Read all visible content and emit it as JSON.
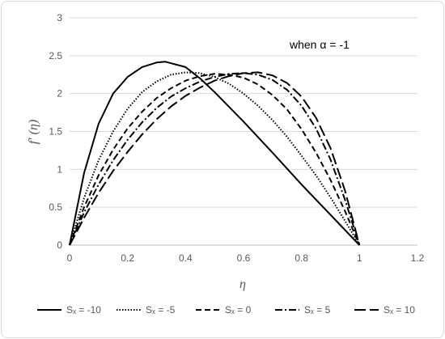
{
  "chart_data": {
    "type": "line",
    "title": "",
    "annotation": "when α = -1",
    "xlabel": "η",
    "ylabel": "f′ (η)",
    "xlim": [
      0,
      1.2
    ],
    "ylim": [
      0,
      3
    ],
    "xticks": [
      "0",
      "0.2",
      "0.4",
      "0.6",
      "0.8",
      "1",
      "1.2"
    ],
    "yticks": [
      "0",
      "0.5",
      "1",
      "1.5",
      "2",
      "2.5",
      "3"
    ],
    "grid": "horizontal",
    "legend_position": "bottom",
    "series": [
      {
        "name": "Sₓ = -10",
        "style": "solid",
        "x": [
          0,
          0.05,
          0.1,
          0.15,
          0.2,
          0.25,
          0.3,
          0.33,
          0.4,
          0.45,
          0.5,
          0.6,
          0.7,
          0.8,
          0.9,
          1.0
        ],
        "y": [
          0,
          0.95,
          1.6,
          2.0,
          2.22,
          2.35,
          2.41,
          2.42,
          2.35,
          2.2,
          2.02,
          1.63,
          1.22,
          0.8,
          0.4,
          0
        ]
      },
      {
        "name": "Sₓ = -5",
        "style": "dotted",
        "x": [
          0,
          0.05,
          0.1,
          0.15,
          0.2,
          0.25,
          0.3,
          0.35,
          0.4,
          0.45,
          0.5,
          0.55,
          0.6,
          0.65,
          0.7,
          0.75,
          0.8,
          0.85,
          0.9,
          0.95,
          1.0
        ],
        "y": [
          0,
          0.62,
          1.12,
          1.5,
          1.8,
          2.02,
          2.16,
          2.25,
          2.28,
          2.27,
          2.22,
          2.13,
          2.0,
          1.84,
          1.65,
          1.43,
          1.18,
          0.92,
          0.63,
          0.32,
          0
        ]
      },
      {
        "name": "Sₓ = 0",
        "style": "dashed",
        "x": [
          0,
          0.05,
          0.1,
          0.15,
          0.2,
          0.25,
          0.3,
          0.35,
          0.4,
          0.45,
          0.5,
          0.55,
          0.6,
          0.65,
          0.7,
          0.75,
          0.8,
          0.85,
          0.9,
          0.95,
          1.0
        ],
        "y": [
          0,
          0.5,
          0.92,
          1.26,
          1.54,
          1.76,
          1.94,
          2.07,
          2.17,
          2.23,
          2.26,
          2.25,
          2.21,
          2.12,
          1.98,
          1.79,
          1.53,
          1.22,
          0.86,
          0.45,
          0
        ]
      },
      {
        "name": "Sₓ = 5",
        "style": "dashdot",
        "x": [
          0,
          0.05,
          0.1,
          0.15,
          0.2,
          0.25,
          0.3,
          0.35,
          0.4,
          0.45,
          0.5,
          0.55,
          0.6,
          0.65,
          0.7,
          0.75,
          0.8,
          0.85,
          0.9,
          0.95,
          1.0
        ],
        "y": [
          0,
          0.43,
          0.8,
          1.12,
          1.39,
          1.62,
          1.81,
          1.96,
          2.07,
          2.16,
          2.22,
          2.26,
          2.27,
          2.25,
          2.18,
          2.05,
          1.84,
          1.54,
          1.13,
          0.6,
          0
        ]
      },
      {
        "name": "Sₓ = 10",
        "style": "longdash",
        "x": [
          0,
          0.05,
          0.1,
          0.15,
          0.2,
          0.25,
          0.3,
          0.35,
          0.4,
          0.45,
          0.5,
          0.55,
          0.6,
          0.65,
          0.7,
          0.75,
          0.8,
          0.85,
          0.9,
          0.95,
          1.0
        ],
        "y": [
          0,
          0.36,
          0.69,
          0.98,
          1.23,
          1.46,
          1.66,
          1.83,
          1.97,
          2.08,
          2.17,
          2.23,
          2.27,
          2.28,
          2.24,
          2.14,
          1.96,
          1.68,
          1.28,
          0.72,
          0
        ]
      }
    ]
  }
}
